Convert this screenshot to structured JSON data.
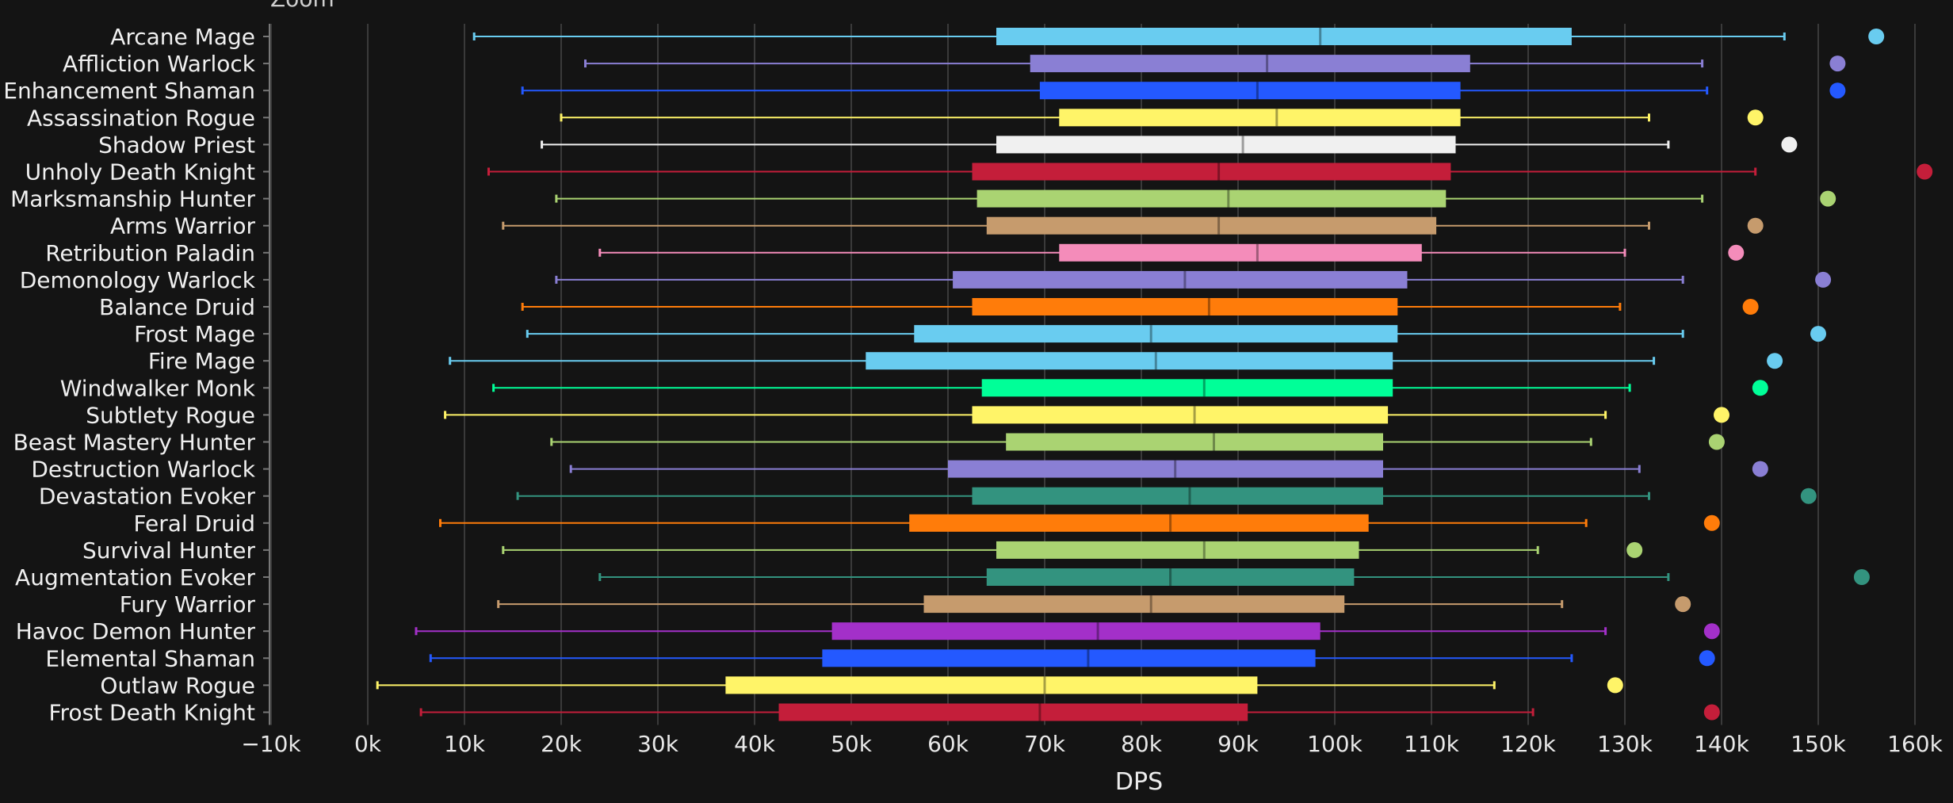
{
  "zoom_label": "Zoom",
  "chart_data": {
    "type": "boxplot",
    "orientation": "horizontal",
    "xlabel": "DPS",
    "xlim": [
      -10000,
      160000
    ],
    "xtick_values": [
      -10000,
      0,
      10000,
      20000,
      30000,
      40000,
      50000,
      60000,
      70000,
      80000,
      90000,
      100000,
      110000,
      120000,
      130000,
      140000,
      150000,
      160000
    ],
    "xtick_labels": [
      "-10k",
      "0k",
      "10k",
      "20k",
      "30k",
      "40k",
      "50k",
      "60k",
      "70k",
      "80k",
      "90k",
      "100k",
      "110k",
      "120k",
      "130k",
      "140k",
      "150k",
      "160k"
    ],
    "grid": true,
    "background": "#141414",
    "series": [
      {
        "name": "Arcane Mage",
        "color": "#69ccf0",
        "min": 11000,
        "q1": 65000,
        "median": 98500,
        "q3": 124500,
        "max": 146500,
        "outlier": 156000
      },
      {
        "name": "Affliction Warlock",
        "color": "#8a7fd4",
        "min": 22500,
        "q1": 68500,
        "median": 93000,
        "q3": 114000,
        "max": 138000,
        "outlier": 152000
      },
      {
        "name": "Enhancement Shaman",
        "color": "#2459ff",
        "min": 16000,
        "q1": 69500,
        "median": 92000,
        "q3": 113000,
        "max": 138500,
        "outlier": 152000
      },
      {
        "name": "Assassination Rogue",
        "color": "#fff468",
        "min": 20000,
        "q1": 71500,
        "median": 94000,
        "q3": 113000,
        "max": 132500,
        "outlier": 143500
      },
      {
        "name": "Shadow Priest",
        "color": "#f0f0f0",
        "min": 18000,
        "q1": 65000,
        "median": 90500,
        "q3": 112500,
        "max": 134500,
        "outlier": 147000
      },
      {
        "name": "Unholy Death Knight",
        "color": "#c41e3a",
        "min": 12500,
        "q1": 62500,
        "median": 88000,
        "q3": 112000,
        "max": 143500,
        "outlier": 161000
      },
      {
        "name": "Marksmanship Hunter",
        "color": "#aad372",
        "min": 19500,
        "q1": 63000,
        "median": 89000,
        "q3": 111500,
        "max": 138000,
        "outlier": 151000
      },
      {
        "name": "Arms Warrior",
        "color": "#c69b6d",
        "min": 14000,
        "q1": 64000,
        "median": 88000,
        "q3": 110500,
        "max": 132500,
        "outlier": 143500
      },
      {
        "name": "Retribution Paladin",
        "color": "#f48cba",
        "min": 24000,
        "q1": 71500,
        "median": 92000,
        "q3": 109000,
        "max": 130000,
        "outlier": 141500
      },
      {
        "name": "Demonology Warlock",
        "color": "#8a7fd4",
        "min": 19500,
        "q1": 60500,
        "median": 84500,
        "q3": 107500,
        "max": 136000,
        "outlier": 150500
      },
      {
        "name": "Balance Druid",
        "color": "#ff7c0a",
        "min": 16000,
        "q1": 62500,
        "median": 87000,
        "q3": 106500,
        "max": 129500,
        "outlier": 143000
      },
      {
        "name": "Frost Mage",
        "color": "#69ccf0",
        "min": 16500,
        "q1": 56500,
        "median": 81000,
        "q3": 106500,
        "max": 136000,
        "outlier": 150000
      },
      {
        "name": "Fire Mage",
        "color": "#69ccf0",
        "min": 8500,
        "q1": 51500,
        "median": 81500,
        "q3": 106000,
        "max": 133000,
        "outlier": 145500
      },
      {
        "name": "Windwalker Monk",
        "color": "#00ff98",
        "min": 13000,
        "q1": 63500,
        "median": 86500,
        "q3": 106000,
        "max": 130500,
        "outlier": 144000
      },
      {
        "name": "Subtlety Rogue",
        "color": "#fff468",
        "min": 8000,
        "q1": 62500,
        "median": 85500,
        "q3": 105500,
        "max": 128000,
        "outlier": 140000
      },
      {
        "name": "Beast Mastery Hunter",
        "color": "#aad372",
        "min": 19000,
        "q1": 66000,
        "median": 87500,
        "q3": 105000,
        "max": 126500,
        "outlier": 139500
      },
      {
        "name": "Destruction Warlock",
        "color": "#8a7fd4",
        "min": 21000,
        "q1": 60000,
        "median": 83500,
        "q3": 105000,
        "max": 131500,
        "outlier": 144000
      },
      {
        "name": "Devastation Evoker",
        "color": "#33937f",
        "min": 15500,
        "q1": 62500,
        "median": 85000,
        "q3": 105000,
        "max": 132500,
        "outlier": 149000
      },
      {
        "name": "Feral Druid",
        "color": "#ff7c0a",
        "min": 7500,
        "q1": 56000,
        "median": 83000,
        "q3": 103500,
        "max": 126000,
        "outlier": 139000
      },
      {
        "name": "Survival Hunter",
        "color": "#aad372",
        "min": 14000,
        "q1": 65000,
        "median": 86500,
        "q3": 102500,
        "max": 121000,
        "outlier": 131000
      },
      {
        "name": "Augmentation Evoker",
        "color": "#33937f",
        "min": 24000,
        "q1": 64000,
        "median": 83000,
        "q3": 102000,
        "max": 134500,
        "outlier": 154500
      },
      {
        "name": "Fury Warrior",
        "color": "#c69b6d",
        "min": 13500,
        "q1": 57500,
        "median": 81000,
        "q3": 101000,
        "max": 123500,
        "outlier": 136000
      },
      {
        "name": "Havoc Demon Hunter",
        "color": "#a330c9",
        "min": 5000,
        "q1": 48000,
        "median": 75500,
        "q3": 98500,
        "max": 128000,
        "outlier": 139000
      },
      {
        "name": "Elemental Shaman",
        "color": "#2459ff",
        "min": 6500,
        "q1": 47000,
        "median": 74500,
        "q3": 98000,
        "max": 124500,
        "outlier": 138500
      },
      {
        "name": "Outlaw Rogue",
        "color": "#fff468",
        "min": 1000,
        "q1": 37000,
        "median": 70000,
        "q3": 92000,
        "max": 116500,
        "outlier": 129000
      },
      {
        "name": "Frost Death Knight",
        "color": "#c41e3a",
        "min": 5500,
        "q1": 42500,
        "median": 69500,
        "q3": 91000,
        "max": 120500,
        "outlier": 139000
      }
    ]
  }
}
